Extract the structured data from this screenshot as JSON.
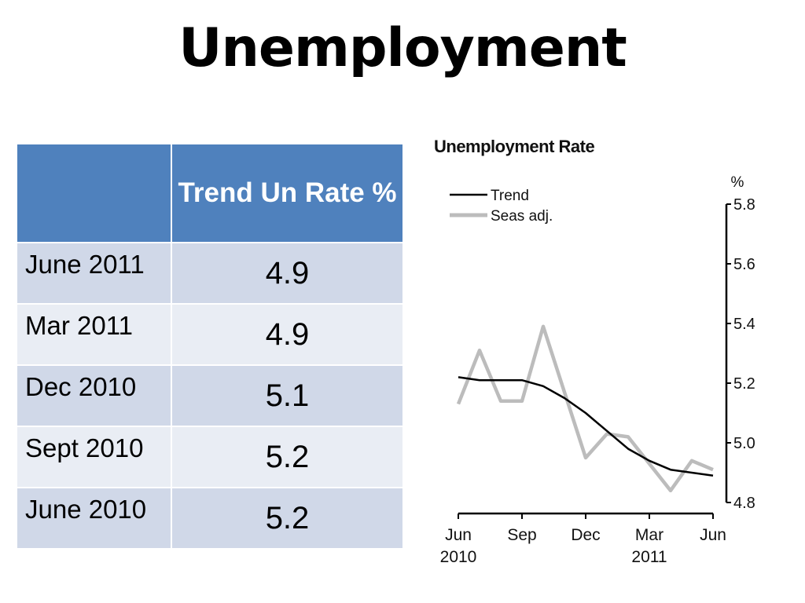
{
  "slide": {
    "title": "Unemployment"
  },
  "table": {
    "header": [
      "",
      "Trend Un Rate %"
    ],
    "rows": [
      {
        "period": "June 2011",
        "rate": "4.9"
      },
      {
        "period": "Mar 2011",
        "rate": "4.9"
      },
      {
        "period": "Dec 2010",
        "rate": "5.1"
      },
      {
        "period": "Sept 2010",
        "rate": "5.2"
      },
      {
        "period": "June 2010",
        "rate": "5.2"
      }
    ],
    "colors": {
      "header": "#4f81bd",
      "row_dark": "#d0d8e8",
      "row_light": "#e9edf4"
    }
  },
  "chart_data": {
    "type": "line",
    "title": "Unemployment Rate",
    "ylabel": "%",
    "ylim": [
      4.8,
      5.8
    ],
    "y_ticks": [
      4.8,
      5.0,
      5.2,
      5.4,
      5.6,
      5.8
    ],
    "y_tick_labels": [
      "4.8",
      "5.0",
      "5.2",
      "5.4",
      "5.6",
      "5.8"
    ],
    "x": [
      "2010-06",
      "2010-07",
      "2010-08",
      "2010-09",
      "2010-10",
      "2010-11",
      "2010-12",
      "2011-01",
      "2011-02",
      "2011-03",
      "2011-04",
      "2011-05",
      "2011-06"
    ],
    "x_tick_labels": [
      {
        "month": "Jun",
        "year": "2010"
      },
      {
        "month": "Sep",
        "year": ""
      },
      {
        "month": "Dec",
        "year": ""
      },
      {
        "month": "Mar",
        "year": "2011"
      },
      {
        "month": "Jun",
        "year": ""
      }
    ],
    "series": [
      {
        "name": "Trend",
        "color": "#000000",
        "values": [
          5.22,
          5.21,
          5.21,
          5.21,
          5.19,
          5.15,
          5.1,
          5.04,
          4.98,
          4.94,
          4.91,
          4.9,
          4.89
        ]
      },
      {
        "name": "Seas adj.",
        "color": "#bcbcbc",
        "values": [
          5.13,
          5.31,
          5.14,
          5.14,
          5.39,
          5.17,
          4.95,
          5.03,
          5.02,
          4.93,
          4.84,
          4.94,
          4.91
        ]
      }
    ],
    "legend_position": "top-left",
    "y_axis_position": "right",
    "grid": false
  }
}
